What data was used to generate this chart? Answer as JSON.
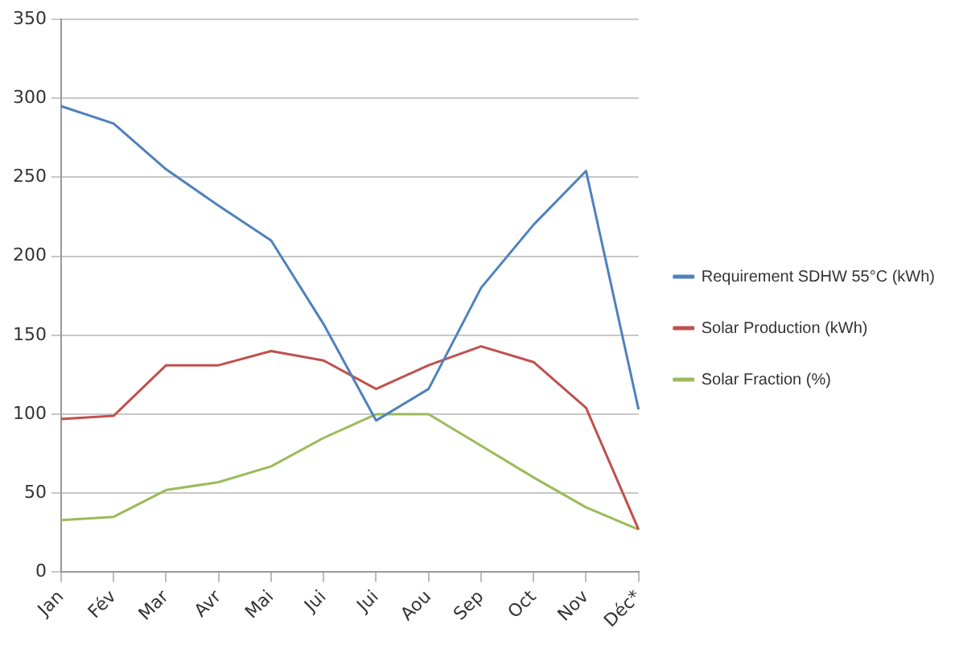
{
  "chart_data": {
    "type": "line",
    "categories": [
      "Jan",
      "Fév",
      "Mar",
      "Avr",
      "Mai",
      "Jui",
      "Jui",
      "Aou",
      "Sep",
      "Oct",
      "Nov",
      "Déc*"
    ],
    "series": [
      {
        "name": "Requirement SDHW 55°C (kWh)",
        "color": "#4f81bd",
        "values": [
          295,
          284,
          255,
          232,
          210,
          157,
          96,
          116,
          180,
          220,
          254,
          103
        ]
      },
      {
        "name": "Solar Production (kWh)",
        "color": "#c0504d",
        "values": [
          97,
          99,
          131,
          131,
          140,
          134,
          116,
          131,
          143,
          133,
          104,
          27
        ]
      },
      {
        "name": "Solar Fraction (%)",
        "color": "#9bbb59",
        "values": [
          33,
          35,
          52,
          57,
          67,
          85,
          100,
          100,
          80,
          60,
          41,
          27
        ]
      }
    ],
    "ylim": [
      0,
      350
    ],
    "yticks": [
      0,
      50,
      100,
      150,
      200,
      250,
      300,
      350
    ],
    "grid": "y",
    "legend": "right",
    "marker": "none"
  }
}
